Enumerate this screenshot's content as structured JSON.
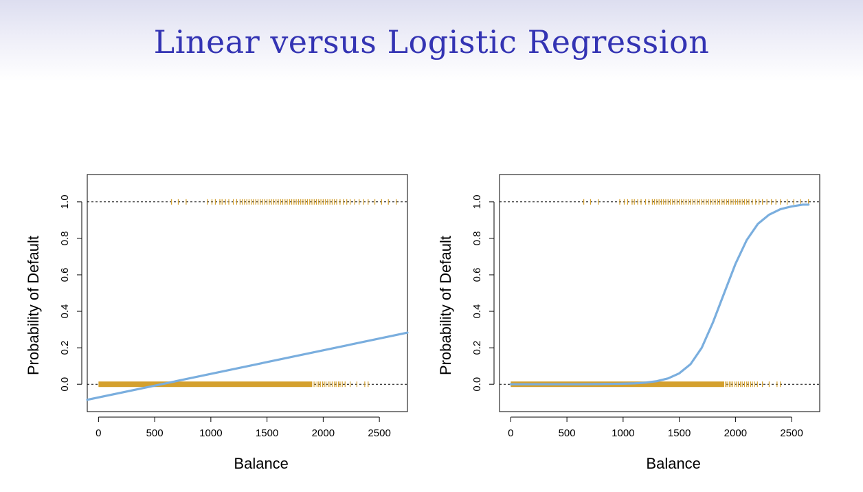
{
  "slide": {
    "title": "Linear versus Logistic Regression"
  },
  "colors": {
    "title": "#3333b3",
    "fit_line": "#7aaede",
    "rug": "#d4a02e",
    "reference_line": "#000000"
  },
  "chart_data": [
    {
      "type": "line",
      "fit": "linear",
      "xlabel": "Balance",
      "ylabel": "Probability of Default",
      "xlim": [
        -100,
        2750
      ],
      "ylim": [
        -0.15,
        1.15
      ],
      "x_ticks": [
        0,
        500,
        1000,
        1500,
        2000,
        2500
      ],
      "x_tick_labels": [
        "0",
        "500",
        "1000",
        "1500",
        "2000",
        "2500"
      ],
      "y_ticks": [
        0.0,
        0.2,
        0.4,
        0.6,
        0.8,
        1.0
      ],
      "y_tick_labels": [
        "0.0",
        "0.2",
        "0.4",
        "0.6",
        "0.8",
        "1.0"
      ],
      "reference_lines_y": [
        0,
        1
      ],
      "series": [
        {
          "kind": "fit-line",
          "x": [
            -100,
            2750
          ],
          "y": [
            -0.085,
            0.283
          ]
        },
        {
          "kind": "rug",
          "y": 0,
          "dense_range": [
            0,
            1900
          ],
          "sparse_x": [
            1910,
            1925,
            1945,
            1960,
            1975,
            1995,
            2010,
            2025,
            2045,
            2060,
            2080,
            2100,
            2115,
            2135,
            2150,
            2170,
            2195,
            2240,
            2300,
            2370,
            2400
          ]
        },
        {
          "kind": "rug",
          "y": 1,
          "x": [
            650,
            710,
            780,
            970,
            1010,
            1040,
            1080,
            1100,
            1130,
            1160,
            1200,
            1230,
            1260,
            1280,
            1300,
            1320,
            1340,
            1360,
            1380,
            1400,
            1420,
            1440,
            1460,
            1480,
            1500,
            1520,
            1540,
            1560,
            1580,
            1600,
            1620,
            1640,
            1660,
            1680,
            1700,
            1720,
            1740,
            1760,
            1780,
            1800,
            1820,
            1840,
            1860,
            1880,
            1900,
            1920,
            1940,
            1960,
            1980,
            2000,
            2020,
            2040,
            2060,
            2080,
            2100,
            2120,
            2150,
            2180,
            2210,
            2240,
            2280,
            2320,
            2360,
            2400,
            2460,
            2520,
            2580,
            2650
          ]
        }
      ]
    },
    {
      "type": "line",
      "fit": "logistic",
      "xlabel": "Balance",
      "ylabel": "Probability of Default",
      "xlim": [
        -100,
        2750
      ],
      "ylim": [
        -0.15,
        1.15
      ],
      "x_ticks": [
        0,
        500,
        1000,
        1500,
        2000,
        2500
      ],
      "x_tick_labels": [
        "0",
        "500",
        "1000",
        "1500",
        "2000",
        "2500"
      ],
      "y_ticks": [
        0.0,
        0.2,
        0.4,
        0.6,
        0.8,
        1.0
      ],
      "y_tick_labels": [
        "0.0",
        "0.2",
        "0.4",
        "0.6",
        "0.8",
        "1.0"
      ],
      "reference_lines_y": [
        0,
        1
      ],
      "series": [
        {
          "kind": "fit-curve",
          "x": [
            0,
            200,
            400,
            600,
            800,
            1000,
            1100,
            1200,
            1300,
            1400,
            1500,
            1600,
            1700,
            1800,
            1900,
            2000,
            2100,
            2200,
            2300,
            2400,
            2500,
            2600,
            2650
          ],
          "y": [
            0.0,
            0.0,
            0.0,
            0.0,
            0.001,
            0.003,
            0.005,
            0.009,
            0.017,
            0.032,
            0.06,
            0.11,
            0.2,
            0.34,
            0.5,
            0.66,
            0.79,
            0.88,
            0.93,
            0.96,
            0.975,
            0.985,
            0.985
          ]
        },
        {
          "kind": "rug",
          "y": 0,
          "dense_range": [
            0,
            1900
          ],
          "sparse_x": [
            1910,
            1925,
            1945,
            1960,
            1975,
            1995,
            2010,
            2025,
            2045,
            2060,
            2080,
            2100,
            2115,
            2135,
            2150,
            2170,
            2195,
            2240,
            2300,
            2370,
            2400
          ]
        },
        {
          "kind": "rug",
          "y": 1,
          "x": [
            650,
            710,
            780,
            970,
            1010,
            1040,
            1080,
            1100,
            1130,
            1160,
            1200,
            1230,
            1260,
            1280,
            1300,
            1320,
            1340,
            1360,
            1380,
            1400,
            1420,
            1440,
            1460,
            1480,
            1500,
            1520,
            1540,
            1560,
            1580,
            1600,
            1620,
            1640,
            1660,
            1680,
            1700,
            1720,
            1740,
            1760,
            1780,
            1800,
            1820,
            1840,
            1860,
            1880,
            1900,
            1920,
            1940,
            1960,
            1980,
            2000,
            2020,
            2040,
            2060,
            2080,
            2100,
            2120,
            2150,
            2180,
            2210,
            2240,
            2280,
            2320,
            2360,
            2400,
            2460,
            2520,
            2580,
            2650
          ]
        }
      ]
    }
  ]
}
